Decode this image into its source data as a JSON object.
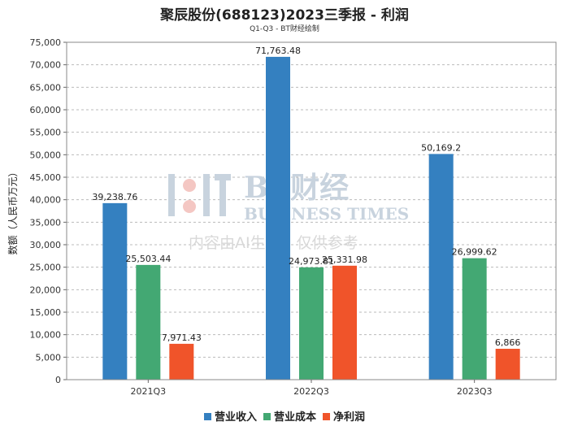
{
  "title": "聚辰股份(688123)2023三季报 - 利润",
  "subtitle": "Q1-Q3 - BT财经绘制",
  "watermark": {
    "logo_text": "BT财经",
    "brand_text": "BUSINESS TIMES",
    "notice_text": "内容由AI生成，仅供参考"
  },
  "chart_data": {
    "type": "bar",
    "categories": [
      "2021Q3",
      "2022Q3",
      "2023Q3"
    ],
    "series": [
      {
        "name": "营业收入",
        "color": "#3480c0",
        "values": [
          39238.76,
          71763.48,
          50169.2
        ],
        "labels": [
          "39,238.76",
          "71,763.48",
          "50,169.2"
        ]
      },
      {
        "name": "营业成本",
        "color": "#43a873",
        "values": [
          25503.44,
          24973.81,
          26999.62
        ],
        "labels": [
          "25,503.44",
          "24,973.81",
          "26,999.62"
        ]
      },
      {
        "name": "净利润",
        "color": "#f0542a",
        "values": [
          7971.43,
          25331.98,
          6866
        ],
        "labels": [
          "7,971.43",
          "25,331.98",
          "6,866"
        ]
      }
    ],
    "ylabel": "数额（人民币万元）",
    "xlabel": "",
    "ylim": [
      0,
      75000
    ],
    "yticks": [
      0,
      5000,
      10000,
      15000,
      20000,
      25000,
      30000,
      35000,
      40000,
      45000,
      50000,
      55000,
      60000,
      65000,
      70000,
      75000
    ],
    "ytick_labels": [
      "0",
      "5,000",
      "10,000",
      "15,000",
      "20,000",
      "25,000",
      "30,000",
      "35,000",
      "40,000",
      "45,000",
      "50,000",
      "55,000",
      "60,000",
      "65,000",
      "70,000",
      "75,000"
    ],
    "grid": true,
    "legend_position": "bottom"
  }
}
